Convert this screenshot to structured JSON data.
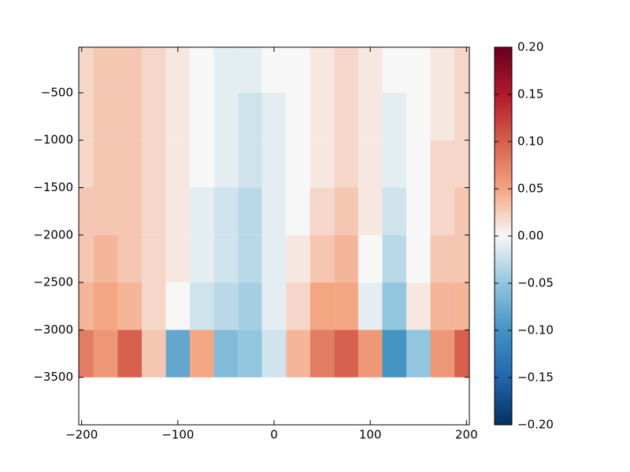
{
  "chart_data": {
    "type": "heatmap",
    "x": [
      -200,
      -175,
      -150,
      -125,
      -100,
      -75,
      -50,
      -25,
      0,
      25,
      50,
      75,
      100,
      125,
      150,
      175,
      200
    ],
    "y": [
      -250,
      -750,
      -1250,
      -1750,
      -2250,
      -2750,
      -3250,
      -3750
    ],
    "z": [
      [
        0.02,
        0.03,
        0.03,
        0.02,
        0.01,
        0.0,
        -0.01,
        -0.01,
        0.0,
        0.0,
        0.01,
        0.02,
        0.01,
        0.0,
        0.0,
        0.01,
        0.02
      ],
      [
        0.02,
        0.03,
        0.03,
        0.02,
        0.01,
        0.0,
        -0.01,
        -0.02,
        -0.01,
        0.0,
        0.01,
        0.02,
        0.01,
        -0.01,
        0.0,
        0.01,
        0.02
      ],
      [
        0.02,
        0.03,
        0.03,
        0.02,
        0.01,
        0.0,
        -0.01,
        -0.02,
        -0.01,
        0.0,
        0.01,
        0.02,
        0.01,
        -0.01,
        0.0,
        0.02,
        0.02
      ],
      [
        0.03,
        0.03,
        0.03,
        0.02,
        0.01,
        -0.01,
        -0.02,
        -0.03,
        -0.01,
        0.0,
        0.02,
        0.03,
        0.01,
        -0.02,
        0.0,
        0.02,
        0.03
      ],
      [
        0.03,
        0.04,
        0.03,
        0.02,
        0.01,
        -0.01,
        -0.02,
        -0.03,
        -0.01,
        0.01,
        0.03,
        0.04,
        0.0,
        -0.03,
        0.0,
        0.03,
        0.03
      ],
      [
        0.04,
        0.05,
        0.04,
        0.02,
        0.0,
        -0.02,
        -0.03,
        -0.04,
        -0.01,
        0.02,
        0.05,
        0.05,
        -0.01,
        -0.05,
        0.01,
        0.04,
        0.04
      ],
      [
        0.08,
        0.06,
        0.1,
        0.03,
        -0.08,
        0.05,
        -0.06,
        -0.05,
        -0.02,
        0.04,
        0.08,
        0.1,
        0.06,
        -0.1,
        -0.05,
        0.06,
        0.1
      ],
      [
        null,
        null,
        null,
        null,
        null,
        null,
        null,
        null,
        null,
        null,
        null,
        null,
        null,
        null,
        null,
        null,
        null
      ]
    ],
    "colorscale": [
      "#053061",
      "#2166ac",
      "#4393c3",
      "#92c5de",
      "#f7f7f7",
      "#f4a582",
      "#d6604d",
      "#b2182b",
      "#67001f"
    ],
    "xlim": [
      -203,
      203
    ],
    "xticks": [
      {
        "value": -200,
        "label": "−200"
      },
      {
        "value": -100,
        "label": "−100"
      },
      0,
      100,
      200
    ],
    "ylim": [
      -4000,
      -20
    ],
    "yticks": [
      {
        "value": -500,
        "label": "−500"
      },
      {
        "value": -1000,
        "label": "−1000"
      },
      {
        "value": -1500,
        "label": "−1500"
      },
      {
        "value": -2000,
        "label": "−2000"
      },
      {
        "value": -2500,
        "label": "−2500"
      },
      {
        "value": -3000,
        "label": "−3000"
      },
      {
        "value": -3500,
        "label": "−3500"
      }
    ],
    "clim": [
      -0.2,
      0.2
    ],
    "cticks": [
      {
        "value": -0.2,
        "label": "−0.20"
      },
      {
        "value": -0.15,
        "label": "−0.15"
      },
      {
        "value": -0.1,
        "label": "−0.10"
      },
      {
        "value": -0.05,
        "label": "−0.05"
      },
      {
        "value": 0,
        "label": "0.00"
      },
      {
        "value": 0.05,
        "label": "0.05"
      },
      {
        "value": 0.1,
        "label": "0.10"
      },
      {
        "value": 0.15,
        "label": "0.15"
      },
      {
        "value": 0.2,
        "label": "0.20"
      }
    ]
  }
}
